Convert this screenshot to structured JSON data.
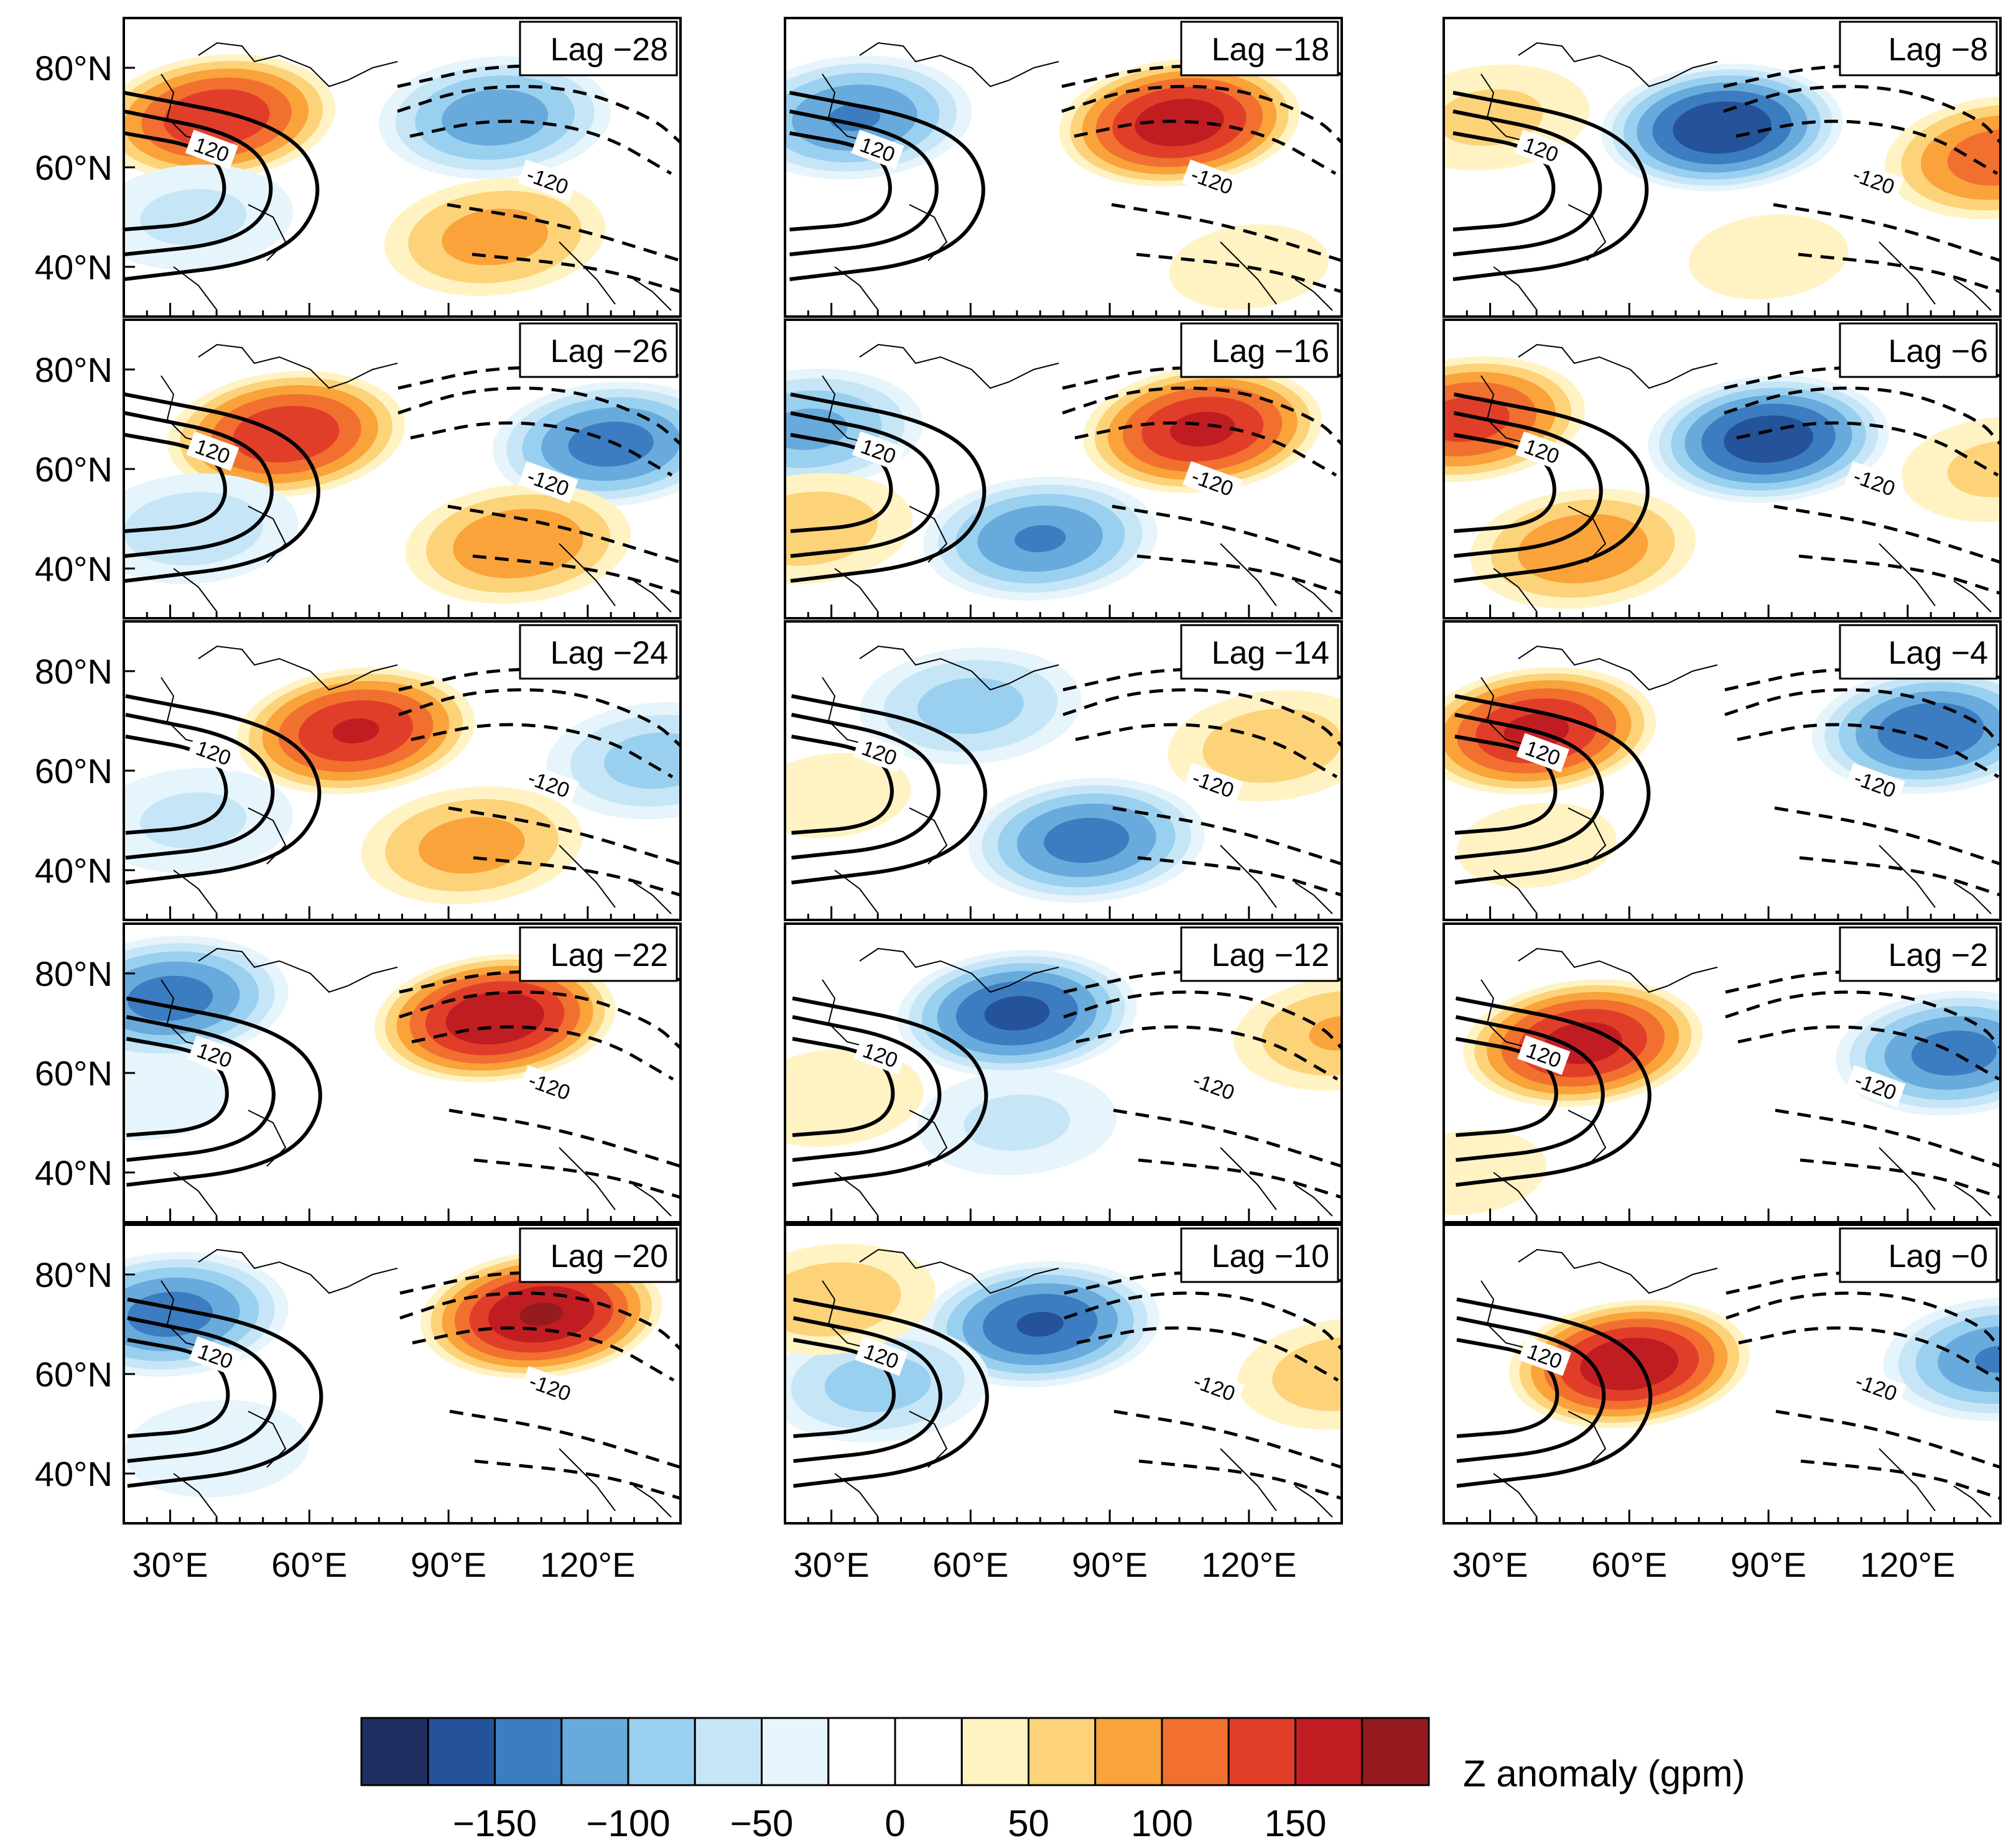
{
  "chart_data": {
    "type": "heatmap",
    "title": "",
    "colorbar": {
      "label": "Z anomaly (gpm)",
      "tick_labels": [
        "−150",
        "−100",
        "−50",
        "0",
        "50",
        "100",
        "150"
      ],
      "tick_values": [
        -150,
        -100,
        -50,
        0,
        50,
        100,
        150
      ],
      "levels": [
        -175,
        -150,
        -125,
        -100,
        -75,
        -50,
        -25,
        0,
        25,
        50,
        75,
        100,
        125,
        150,
        175
      ],
      "colors": [
        "#1f2f62",
        "#24539a",
        "#3c7cc0",
        "#68aadc",
        "#9ad0ef",
        "#c6e6f7",
        "#e6f4fc",
        "#ffffff",
        "#ffffff",
        "#fff3c4",
        "#fdd37a",
        "#f9a33a",
        "#f1702f",
        "#e13e2a",
        "#c01d22",
        "#951b1e"
      ]
    },
    "contour_label": "120",
    "contour_label_negative": "-120",
    "lon_ticks": [
      "30°E",
      "60°E",
      "90°E",
      "120°E"
    ],
    "lon_tick_values": [
      30,
      60,
      90,
      120
    ],
    "lat_ticks": [
      "80°N",
      "60°N",
      "40°N"
    ],
    "lat_tick_values": [
      80,
      60,
      40
    ],
    "lon_range": [
      20,
      140
    ],
    "lat_range": [
      30,
      90
    ],
    "panels": [
      {
        "label": "Lag −28",
        "lag": -28,
        "blobs": [
          [
            40,
            70,
            150
          ],
          [
            35,
            50,
            -60
          ],
          [
            100,
            70,
            -120
          ],
          [
            100,
            46,
            90
          ]
        ]
      },
      {
        "label": "Lag −26",
        "lag": -26,
        "blobs": [
          [
            55,
            67,
            150
          ],
          [
            35,
            48,
            -70
          ],
          [
            125,
            65,
            -140
          ],
          [
            105,
            45,
            100
          ]
        ]
      },
      {
        "label": "Lag −24",
        "lag": -24,
        "blobs": [
          [
            70,
            68,
            155
          ],
          [
            35,
            50,
            -60
          ],
          [
            95,
            45,
            90
          ],
          [
            135,
            62,
            -90
          ]
        ]
      },
      {
        "label": "Lag −22",
        "lag": -22,
        "blobs": [
          [
            100,
            71,
            175
          ],
          [
            30,
            75,
            -140
          ],
          [
            25,
            55,
            -40
          ]
        ]
      },
      {
        "label": "Lag −20",
        "lag": -20,
        "blobs": [
          [
            110,
            72,
            180
          ],
          [
            30,
            72,
            -140
          ],
          [
            40,
            45,
            -50
          ]
        ]
      },
      {
        "label": "Lag −18",
        "lag": -18,
        "blobs": [
          [
            105,
            69,
            170
          ],
          [
            35,
            70,
            -130
          ],
          [
            120,
            40,
            40
          ]
        ]
      },
      {
        "label": "Lag −16",
        "lag": -16,
        "blobs": [
          [
            110,
            68,
            160
          ],
          [
            75,
            46,
            -130
          ],
          [
            25,
            68,
            -110
          ],
          [
            25,
            48,
            70
          ]
        ]
      },
      {
        "label": "Lag −14",
        "lag": -14,
        "blobs": [
          [
            85,
            46,
            -140
          ],
          [
            60,
            73,
            -90
          ],
          [
            125,
            65,
            70
          ],
          [
            30,
            55,
            40
          ]
        ]
      },
      {
        "label": "Lag −12",
        "lag": -12,
        "blobs": [
          [
            70,
            72,
            -160
          ],
          [
            70,
            50,
            -60
          ],
          [
            140,
            68,
            80
          ],
          [
            30,
            55,
            50
          ]
        ]
      },
      {
        "label": "Lag −10",
        "lag": -10,
        "blobs": [
          [
            75,
            70,
            -155
          ],
          [
            40,
            58,
            -90
          ],
          [
            140,
            60,
            70
          ],
          [
            30,
            75,
            70
          ]
        ]
      },
      {
        "label": "Lag −8",
        "lag": -8,
        "blobs": [
          [
            80,
            68,
            -175
          ],
          [
            140,
            62,
            120
          ],
          [
            30,
            70,
            60
          ],
          [
            90,
            42,
            40
          ]
        ]
      },
      {
        "label": "Lag −6",
        "lag": -6,
        "blobs": [
          [
            90,
            66,
            -170
          ],
          [
            25,
            70,
            140
          ],
          [
            50,
            44,
            100
          ],
          [
            140,
            60,
            60
          ]
        ]
      },
      {
        "label": "Lag −4",
        "lag": -4,
        "blobs": [
          [
            40,
            68,
            160
          ],
          [
            125,
            68,
            -150
          ],
          [
            40,
            45,
            40
          ]
        ]
      },
      {
        "label": "Lag −2",
        "lag": -2,
        "blobs": [
          [
            50,
            66,
            165
          ],
          [
            130,
            64,
            -140
          ],
          [
            25,
            40,
            40
          ]
        ]
      },
      {
        "label": "Lag −0",
        "lag": 0,
        "blobs": [
          [
            60,
            62,
            175
          ],
          [
            140,
            63,
            -130
          ]
        ]
      }
    ]
  }
}
